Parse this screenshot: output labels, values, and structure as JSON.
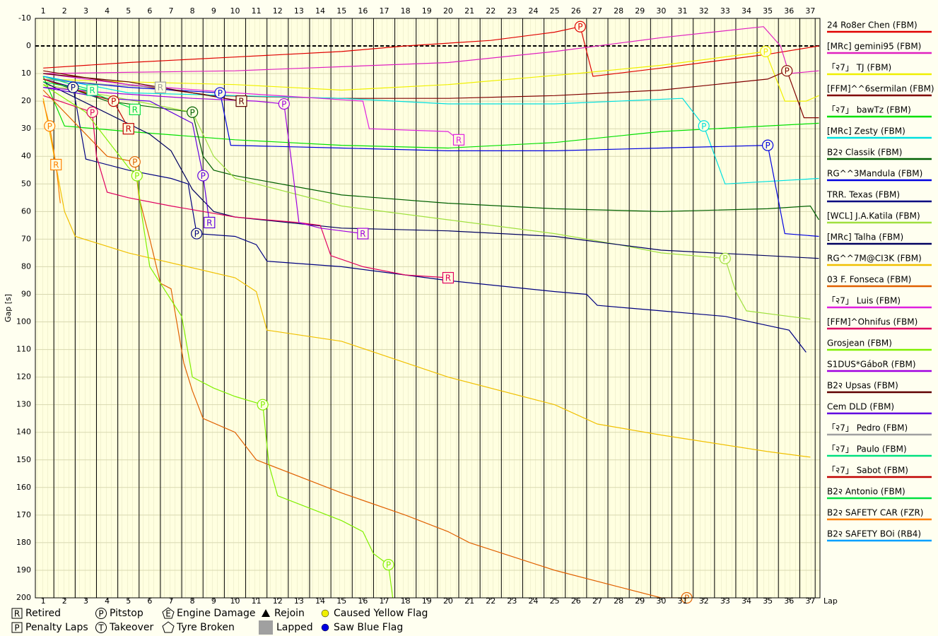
{
  "chart_data": {
    "type": "line",
    "y_label": "Gap [s]",
    "x_label": "Lap",
    "xlim": [
      0.63,
      37.45
    ],
    "xticks": [
      1,
      2,
      3,
      4,
      5,
      6,
      7,
      8,
      9,
      10,
      11,
      12,
      13,
      14,
      15,
      16,
      17,
      18,
      19,
      20,
      21,
      22,
      23,
      24,
      25,
      26,
      27,
      28,
      29,
      30,
      31,
      32,
      33,
      34,
      35,
      36,
      37
    ],
    "ylim": [
      200,
      -10
    ],
    "yticks": [
      -10,
      0,
      10,
      20,
      30,
      40,
      50,
      60,
      70,
      80,
      90,
      100,
      110,
      120,
      130,
      140,
      150,
      160,
      170,
      180,
      190,
      200
    ],
    "grid": true,
    "zero_line": true,
    "legend": "right",
    "series": [
      {
        "name": "24 Ro8er Chen (FBM)",
        "color": "#e00000",
        "x": [
          1,
          5,
          10,
          15,
          18,
          22,
          25,
          26.2,
          26.8,
          30,
          33,
          35,
          37.4
        ],
        "values": [
          8,
          6,
          4,
          2,
          0,
          -2,
          -5,
          -7,
          11,
          8,
          5,
          3,
          0
        ],
        "events": [
          {
            "x": 26.2,
            "y": -7,
            "label": "P"
          }
        ]
      },
      {
        "name": "[MRc] gemini95 (FBM)",
        "color": "#e020c0",
        "x": [
          1,
          10,
          20,
          25,
          30,
          34.8,
          35.6,
          36,
          37.4
        ],
        "values": [
          10,
          9,
          6,
          2,
          -3,
          -7,
          0,
          10,
          9
        ],
        "events": []
      },
      {
        "name": "「२7」 TJ (FBM)",
        "color": "#f0f000",
        "x": [
          1,
          5,
          10,
          15,
          20,
          26,
          30,
          34.9,
          35.8,
          36.8,
          37.4
        ],
        "values": [
          12,
          13,
          14,
          16,
          14,
          10,
          7,
          2,
          20,
          20,
          18
        ],
        "events": [
          {
            "x": 34.9,
            "y": 2,
            "label": "P"
          }
        ]
      },
      {
        "name": "[FFM]^^6sermilan (FBM)",
        "color": "#800000",
        "x": [
          1,
          5,
          9,
          15,
          20,
          25,
          30,
          35,
          35.9,
          36.7,
          37.4
        ],
        "values": [
          9,
          14,
          18,
          19,
          19,
          18,
          16,
          12,
          9,
          26,
          26
        ],
        "events": [
          {
            "x": 35.9,
            "y": 9,
            "label": "P"
          }
        ]
      },
      {
        "name": "「२7」 bawTz (FBM)",
        "color": "#00e000",
        "x": [
          1,
          2,
          5,
          10,
          15,
          20,
          25,
          30,
          37.4
        ],
        "values": [
          11,
          29,
          31,
          34,
          36,
          37,
          35,
          31,
          28
        ],
        "events": []
      },
      {
        "name": "[MRc] Zesty (FBM)",
        "color": "#00e0e0",
        "x": [
          1,
          5,
          10,
          15,
          20,
          25,
          31,
          32,
          33,
          37.4
        ],
        "values": [
          11,
          17,
          18,
          19,
          21,
          21,
          19,
          29,
          50,
          48
        ],
        "events": [
          {
            "x": 32,
            "y": 29,
            "label": "P"
          }
        ]
      },
      {
        "name": "B2२ Classik (FBM)",
        "color": "#006000",
        "x": [
          1,
          4,
          8,
          8.5,
          9,
          10,
          15,
          20,
          25,
          30,
          35,
          37,
          37.4
        ],
        "values": [
          12,
          20,
          24,
          40,
          45,
          47,
          54,
          57,
          59,
          60,
          59,
          58,
          63
        ],
        "events": [
          {
            "x": 8,
            "y": 24,
            "label": "P"
          }
        ]
      },
      {
        "name": "RG^^3Mandula (FBM)",
        "color": "#0000e0",
        "x": [
          1,
          5,
          9.3,
          9.8,
          15,
          20,
          25,
          30,
          35,
          35.8,
          37.4
        ],
        "values": [
          12,
          15,
          17,
          36,
          37,
          38,
          38,
          37,
          36,
          68,
          69
        ],
        "events": [
          {
            "x": 9.3,
            "y": 17,
            "label": "P"
          },
          {
            "x": 35,
            "y": 36,
            "label": "P"
          }
        ]
      },
      {
        "name": "TRR. Texas (FBM)",
        "color": "#000080",
        "x": [
          1,
          2.4,
          3,
          5,
          7,
          7.8,
          8.2,
          10,
          11,
          11.5,
          15,
          20,
          25,
          26.5,
          27,
          30,
          33,
          36,
          36.8
        ],
        "values": [
          12,
          15,
          41,
          45,
          48,
          50,
          68,
          69,
          72,
          78,
          80,
          85,
          89,
          90,
          94,
          96,
          98,
          103,
          111
        ],
        "events": [
          {
            "x": 2.4,
            "y": 15,
            "label": "P"
          },
          {
            "x": 8.2,
            "y": 68,
            "label": "P"
          }
        ]
      },
      {
        "name": "[WCL] J.A.Katila (FBM)",
        "color": "#a0e040",
        "x": [
          1,
          4,
          6,
          8,
          9,
          10,
          15,
          20,
          25,
          28,
          30,
          33,
          33.5,
          34,
          36,
          37
        ],
        "values": [
          14,
          18,
          21,
          24,
          40,
          48,
          58,
          63,
          68,
          72,
          75,
          77,
          89,
          96,
          98,
          99
        ],
        "events": [
          {
            "x": 33,
            "y": 77,
            "label": "P"
          }
        ]
      },
      {
        "name": "[MRc] Talha (FBM)",
        "color": "#000060",
        "x": [
          1,
          6,
          7,
          8,
          9,
          10,
          15,
          20,
          25,
          28,
          30,
          35,
          37.4
        ],
        "values": [
          13,
          32,
          38,
          52,
          60,
          62,
          66,
          67,
          69,
          72,
          74,
          76,
          77
        ],
        "events": []
      },
      {
        "name": "RG^^7M@CI3K (FBM)",
        "color": "#f0c000",
        "x": [
          1,
          2,
          2.5,
          5,
          10,
          11,
          11.5,
          15,
          20,
          25,
          27,
          30,
          35,
          37
        ],
        "values": [
          19,
          60,
          69,
          75,
          84,
          89,
          103,
          107,
          120,
          130,
          137,
          141,
          147,
          149
        ],
        "events": []
      },
      {
        "name": "03 F. Fonseca (FBM)",
        "color": "#e06000",
        "x": [
          1,
          4,
          5.3,
          5.5,
          6,
          6.5,
          7,
          7.6,
          8,
          8.5,
          10,
          11,
          15,
          18,
          20,
          21,
          25,
          28,
          30,
          31.2
        ],
        "values": [
          16,
          40,
          42,
          55,
          70,
          86,
          88,
          115,
          125,
          135,
          140,
          150,
          162,
          170,
          176,
          180,
          190,
          196,
          200,
          200
        ],
        "events": [
          {
            "x": 5.3,
            "y": 42,
            "label": "P"
          },
          {
            "x": 31.2,
            "y": 200,
            "label": "P"
          }
        ]
      },
      {
        "name": "「२7」 Luis (FBM)",
        "color": "#e020e0",
        "x": [
          1,
          5,
          10,
          16,
          16.3,
          20,
          20.5
        ],
        "values": [
          10,
          14,
          17,
          20,
          30,
          31,
          34
        ],
        "events": [
          {
            "x": 20.5,
            "y": 34,
            "label": "R"
          }
        ]
      },
      {
        "name": "[FFM]^Ohnifus (FBM)",
        "color": "#e00060",
        "x": [
          1,
          3.3,
          3.5,
          4,
          5,
          7,
          10,
          13,
          14,
          14.5,
          16,
          18,
          20
        ],
        "values": [
          18,
          24,
          40,
          53,
          55,
          58,
          62,
          64,
          65,
          76,
          80,
          83,
          84
        ],
        "events": [
          {
            "x": 3.3,
            "y": 24,
            "label": "P"
          },
          {
            "x": 20,
            "y": 84,
            "label": "R"
          }
        ]
      },
      {
        "name": "Grosjean (FBM)",
        "color": "#80f000",
        "x": [
          1,
          3,
          5,
          5.4,
          5.6,
          6,
          7,
          7.5,
          8,
          9,
          10,
          11.3,
          11.6,
          12,
          15,
          16,
          16.5,
          17.2,
          17.4
        ],
        "values": [
          14,
          24,
          44,
          47,
          60,
          80,
          92,
          98,
          120,
          124,
          127,
          130,
          152,
          163,
          172,
          176,
          184,
          188,
          200
        ],
        "events": [
          {
            "x": 5.4,
            "y": 47,
            "label": "P"
          },
          {
            "x": 11.3,
            "y": 130,
            "label": "P"
          },
          {
            "x": 17.2,
            "y": 188,
            "label": "P"
          }
        ]
      },
      {
        "name": "S1DUS*GáboR (FBM)",
        "color": "#a000e0",
        "x": [
          1,
          4,
          8,
          11,
          12.3,
          12.7,
          13,
          14,
          15,
          16
        ],
        "values": [
          15,
          17,
          19,
          20,
          21,
          45,
          64,
          66,
          67,
          68
        ],
        "events": [
          {
            "x": 12.3,
            "y": 21,
            "label": "P"
          },
          {
            "x": 16,
            "y": 68,
            "label": "R"
          }
        ]
      },
      {
        "name": "B2२ Upsas (FBM)",
        "color": "#600000",
        "x": [
          1,
          5,
          8,
          10.3
        ],
        "values": [
          10,
          13,
          17,
          20
        ],
        "events": [
          {
            "x": 10.3,
            "y": 20,
            "label": "R"
          }
        ]
      },
      {
        "name": "Cem DLD (FBM)",
        "color": "#6000e0",
        "x": [
          1,
          4,
          6,
          8,
          8.5,
          8.8
        ],
        "values": [
          15,
          19,
          20,
          28,
          47,
          64
        ],
        "events": [
          {
            "x": 8.5,
            "y": 47,
            "label": "P"
          },
          {
            "x": 8.8,
            "y": 64,
            "label": "R"
          }
        ]
      },
      {
        "name": "「२7」 Pedro (FBM)",
        "color": "#a0a0a0",
        "x": [
          1,
          4,
          6.5
        ],
        "values": [
          12,
          14,
          15
        ],
        "events": [
          {
            "x": 6.5,
            "y": 15,
            "label": "R"
          }
        ]
      },
      {
        "name": "「२7」 Paulo (FBM)",
        "color": "#00e080",
        "x": [
          1,
          3.3
        ],
        "values": [
          11,
          16
        ],
        "events": [
          {
            "x": 3.3,
            "y": 16,
            "label": "R"
          }
        ]
      },
      {
        "name": "「२7」 Sabot (FBM)",
        "color": "#c00000",
        "x": [
          1,
          3,
          4.3,
          4.8,
          5
        ],
        "values": [
          12,
          17,
          20,
          27,
          30
        ],
        "events": [
          {
            "x": 4.3,
            "y": 20,
            "label": "P"
          },
          {
            "x": 5,
            "y": 30,
            "label": "R"
          }
        ]
      },
      {
        "name": "B2२ Antonio (FBM)",
        "color": "#00e040",
        "x": [
          1,
          3,
          5.3
        ],
        "values": [
          13,
          16,
          23
        ],
        "events": [
          {
            "x": 5.3,
            "y": 23,
            "label": "R"
          }
        ]
      },
      {
        "name": "B2२ SAFETY CAR (FZR)",
        "color": "#ff8000",
        "x": [
          1,
          1.3,
          1.6,
          1.8
        ],
        "values": [
          20,
          29,
          43,
          57
        ],
        "events": [
          {
            "x": 1.3,
            "y": 29,
            "label": "P"
          },
          {
            "x": 1.6,
            "y": 43,
            "label": "R"
          }
        ]
      },
      {
        "name": "B2२ SAFETY BOi (RB4)",
        "color": "#00a0ff",
        "x": [
          1,
          3
        ],
        "values": [
          11,
          14
        ],
        "events": []
      }
    ],
    "marker_legend": [
      {
        "label": "Retired",
        "symbol": "R",
        "shape": "square"
      },
      {
        "label": "Penalty Laps",
        "symbol": "P",
        "shape": "square"
      },
      {
        "label": "Pitstop",
        "symbol": "P",
        "shape": "circle"
      },
      {
        "label": "Takeover",
        "symbol": "T",
        "shape": "circle"
      },
      {
        "label": "Engine Damage",
        "symbol": "E",
        "shape": "pentagon"
      },
      {
        "label": "Tyre Broken",
        "shape": "pentagon"
      },
      {
        "label": "Rejoin",
        "shape": "triangle"
      },
      {
        "label": "Lapped",
        "shape": "block",
        "color": "#a0a0a0"
      },
      {
        "label": "Caused Yellow Flag",
        "shape": "dot",
        "color": "#f0f000"
      },
      {
        "label": "Saw Blue Flag",
        "shape": "dot",
        "color": "#0000e0"
      }
    ]
  }
}
